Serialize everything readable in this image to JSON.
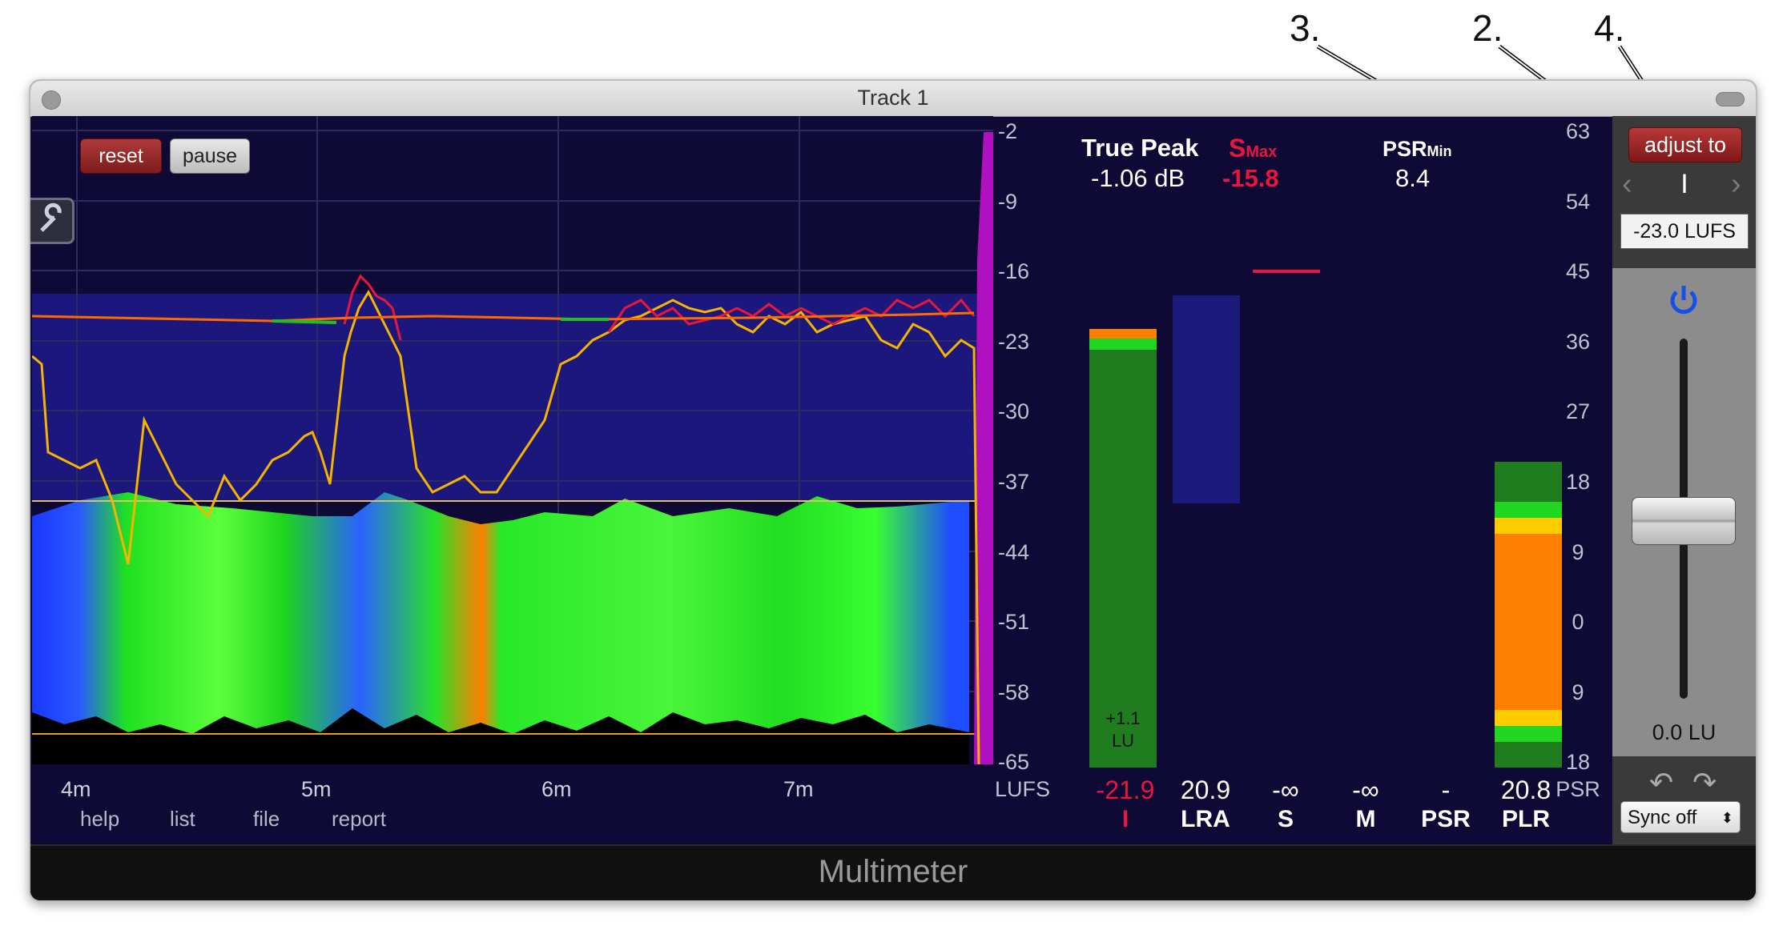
{
  "callouts": [
    "3.",
    "2.",
    "4."
  ],
  "window": {
    "title": "Track 1",
    "plugin_name": "Multimeter"
  },
  "graph": {
    "reset_label": "reset",
    "pause_label": "pause",
    "time_ticks": [
      "4m",
      "5m",
      "6m",
      "7m"
    ],
    "menu_links": [
      "help",
      "list",
      "file",
      "report"
    ],
    "lufs_scale": [
      "-2",
      "-9",
      "-16",
      "-23",
      "-30",
      "-37",
      "-44",
      "-51",
      "-58",
      "-65"
    ],
    "lufs_unit": "LUFS"
  },
  "stats": {
    "true_peak_label": "True Peak",
    "true_peak_value": "-1.06 dB",
    "smax_label": "S",
    "smax_sub": "Max",
    "smax_value": "-15.8",
    "psr_label": "PSR",
    "psr_sub": "Min",
    "psr_value": "8.4"
  },
  "meters": {
    "integrated_bar_text_1": "+1.1",
    "integrated_bar_text_2": "LU",
    "values": [
      "-21.9",
      "20.9",
      "-∞",
      "-∞",
      "-",
      "20.8"
    ],
    "labels": [
      "I",
      "LRA",
      "S",
      "M",
      "PSR",
      "PLR"
    ],
    "psr_scale": [
      "63",
      "54",
      "45",
      "36",
      "27",
      "18",
      "9",
      "0",
      "9",
      "18"
    ],
    "psr_unit": "PSR"
  },
  "sidepanel": {
    "adjust_label": "adjust to",
    "target_mode": "I",
    "target_value": "-23.0 LUFS",
    "gain_value": "0.0 LU",
    "sync_label": "Sync off"
  },
  "colors": {
    "accent_red": "#e8163c",
    "loudness_line": "#f5b400",
    "integrated_line": "#ff6a00",
    "bg": "#0e0a35"
  }
}
